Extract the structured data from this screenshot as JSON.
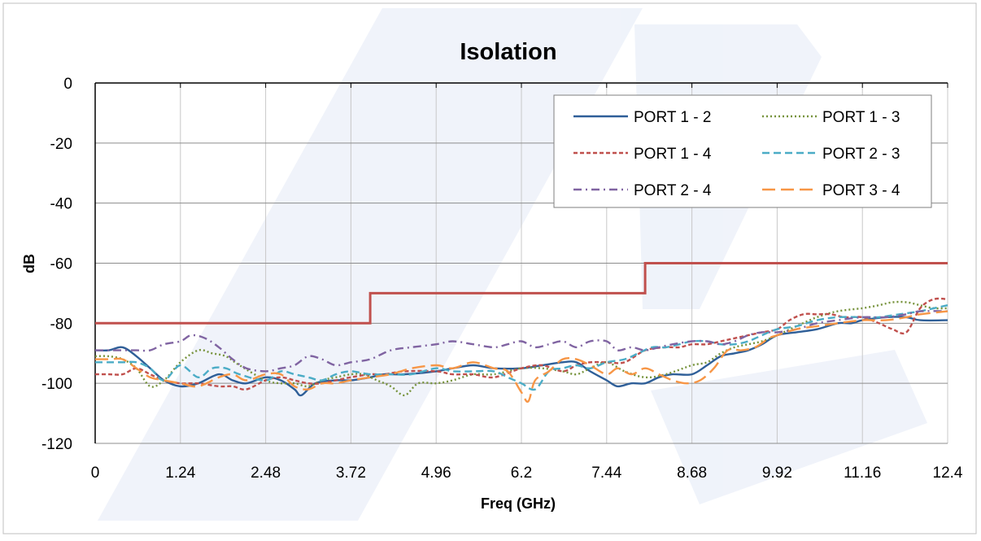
{
  "chart_data": {
    "type": "line",
    "title": "Isolation",
    "xlabel": "Freq (GHz)",
    "ylabel": "dB",
    "xlim": [
      0,
      12.4
    ],
    "ylim": [
      -120,
      0
    ],
    "xticks": [
      0,
      1.24,
      2.48,
      3.72,
      4.96,
      6.2,
      7.44,
      8.68,
      9.92,
      11.16,
      12.4
    ],
    "xtick_labels": [
      "0",
      "1.24",
      "2.48",
      "3.72",
      "4.96",
      "6.2",
      "7.44",
      "8.68",
      "9.92",
      "11.16",
      "12.4"
    ],
    "yticks": [
      0,
      -20,
      -40,
      -60,
      -80,
      -100,
      -120
    ],
    "ytick_labels": [
      "0",
      "-20",
      "-40",
      "-60",
      "-80",
      "-100",
      "-120"
    ],
    "grid": true,
    "legend_position": "top-right",
    "limit_line": {
      "color": "#c0504d",
      "x": [
        0,
        4.0,
        4.0,
        8.0,
        8.0,
        12.4
      ],
      "y": [
        -80,
        -80,
        -70,
        -70,
        -60,
        -60
      ]
    },
    "series": [
      {
        "name": "PORT 1 - 2",
        "color": "#2f5f98",
        "dash": "solid",
        "x": [
          0,
          0.2,
          0.4,
          0.6,
          0.8,
          1.0,
          1.24,
          1.5,
          1.8,
          2.0,
          2.2,
          2.48,
          2.7,
          2.9,
          3.0,
          3.2,
          3.5,
          3.72,
          4.0,
          4.2,
          4.5,
          4.96,
          5.2,
          5.5,
          5.8,
          6.2,
          6.5,
          6.8,
          7.0,
          7.2,
          7.44,
          7.6,
          7.8,
          8.0,
          8.2,
          8.4,
          8.68,
          8.9,
          9.1,
          9.3,
          9.5,
          9.7,
          9.92,
          10.2,
          10.5,
          10.8,
          11.0,
          11.16,
          11.5,
          11.8,
          12.0,
          12.4
        ],
        "y": [
          -89,
          -89,
          -88,
          -91,
          -95,
          -99,
          -101,
          -100,
          -97,
          -99,
          -100,
          -98,
          -99,
          -102,
          -104,
          -100,
          -99,
          -99,
          -98,
          -97,
          -97,
          -96,
          -95,
          -94,
          -95,
          -95,
          -94,
          -93,
          -93,
          -96,
          -99,
          -101,
          -100,
          -100,
          -98,
          -97,
          -97,
          -94,
          -91,
          -90,
          -89,
          -87,
          -84,
          -83,
          -82,
          -80,
          -80,
          -79,
          -78,
          -78,
          -79,
          -79
        ]
      },
      {
        "name": "PORT 1 - 3",
        "color": "#77933c",
        "dash": "dotted",
        "x": [
          0,
          0.2,
          0.4,
          0.6,
          0.8,
          1.0,
          1.24,
          1.5,
          1.7,
          1.9,
          2.1,
          2.48,
          2.7,
          2.9,
          3.1,
          3.3,
          3.5,
          3.72,
          3.9,
          4.1,
          4.3,
          4.5,
          4.7,
          4.96,
          5.2,
          5.5,
          5.8,
          6.2,
          6.5,
          6.8,
          7.0,
          7.2,
          7.44,
          7.7,
          8.0,
          8.3,
          8.68,
          8.9,
          9.1,
          9.3,
          9.5,
          9.7,
          9.92,
          10.2,
          10.5,
          10.8,
          11.16,
          11.4,
          11.6,
          11.8,
          12.0,
          12.2,
          12.4
        ],
        "y": [
          -91,
          -91,
          -92,
          -95,
          -101,
          -99,
          -93,
          -89,
          -90,
          -91,
          -94,
          -99,
          -100,
          -100,
          -101,
          -99,
          -98,
          -97,
          -97,
          -99,
          -101,
          -104,
          -100,
          -100,
          -99,
          -97,
          -97,
          -95,
          -95,
          -96,
          -97,
          -95,
          -93,
          -96,
          -98,
          -97,
          -94,
          -93,
          -90,
          -88,
          -87,
          -86,
          -84,
          -81,
          -78,
          -76,
          -75,
          -74,
          -73,
          -73,
          -74,
          -75,
          -75
        ]
      },
      {
        "name": "PORT 1 - 4",
        "color": "#c0504d",
        "dash": "short-dash",
        "x": [
          0,
          0.2,
          0.4,
          0.6,
          0.8,
          1.0,
          1.24,
          1.5,
          1.8,
          2.0,
          2.2,
          2.48,
          2.7,
          2.9,
          3.1,
          3.3,
          3.5,
          3.72,
          4.0,
          4.2,
          4.5,
          4.96,
          5.2,
          5.5,
          5.8,
          6.2,
          6.5,
          6.8,
          7.0,
          7.2,
          7.44,
          7.7,
          8.0,
          8.3,
          8.5,
          8.68,
          8.9,
          9.1,
          9.3,
          9.5,
          9.7,
          9.92,
          10.1,
          10.3,
          10.5,
          10.7,
          10.9,
          11.16,
          11.4,
          11.6,
          11.8,
          12.0,
          12.2,
          12.4
        ],
        "y": [
          -97,
          -97,
          -97,
          -95,
          -97,
          -99,
          -100,
          -100,
          -101,
          -101,
          -102,
          -99,
          -98,
          -99,
          -100,
          -100,
          -99,
          -98,
          -97,
          -97,
          -96,
          -96,
          -97,
          -97,
          -98,
          -95,
          -94,
          -96,
          -94,
          -93,
          -93,
          -93,
          -89,
          -88,
          -88,
          -87,
          -87,
          -86,
          -85,
          -84,
          -83,
          -82,
          -79,
          -77,
          -77,
          -77,
          -78,
          -78,
          -80,
          -82,
          -83,
          -75,
          -72,
          -72
        ]
      },
      {
        "name": "PORT 2 - 3",
        "color": "#4bacc6",
        "dash": "dash",
        "x": [
          0,
          0.2,
          0.4,
          0.6,
          0.8,
          1.0,
          1.24,
          1.5,
          1.7,
          1.9,
          2.1,
          2.48,
          2.7,
          2.9,
          3.1,
          3.3,
          3.5,
          3.72,
          4.0,
          4.3,
          4.6,
          4.96,
          5.2,
          5.5,
          5.8,
          6.0,
          6.2,
          6.4,
          6.6,
          6.8,
          7.0,
          7.2,
          7.44,
          7.7,
          7.9,
          8.1,
          8.3,
          8.5,
          8.68,
          8.9,
          9.1,
          9.3,
          9.5,
          9.7,
          9.92,
          10.2,
          10.5,
          10.8,
          11.16,
          11.4,
          11.7,
          12.0,
          12.2,
          12.4
        ],
        "y": [
          -93,
          -93,
          -93,
          -93,
          -95,
          -99,
          -94,
          -98,
          -95,
          -95,
          -97,
          -99,
          -96,
          -97,
          -98,
          -99,
          -97,
          -96,
          -97,
          -97,
          -97,
          -95,
          -96,
          -96,
          -96,
          -98,
          -100,
          -102,
          -96,
          -95,
          -94,
          -95,
          -93,
          -92,
          -90,
          -88,
          -88,
          -87,
          -86,
          -86,
          -87,
          -87,
          -86,
          -84,
          -82,
          -81,
          -79,
          -78,
          -78,
          -78,
          -77,
          -76,
          -75,
          -74
        ]
      },
      {
        "name": "PORT 2 - 4",
        "color": "#8064a2",
        "dash": "dash-dot",
        "x": [
          0,
          0.2,
          0.4,
          0.6,
          0.8,
          1.0,
          1.24,
          1.4,
          1.6,
          1.8,
          2.0,
          2.2,
          2.48,
          2.7,
          2.9,
          3.1,
          3.3,
          3.5,
          3.72,
          4.0,
          4.3,
          4.6,
          4.96,
          5.2,
          5.5,
          5.8,
          6.0,
          6.2,
          6.4,
          6.6,
          6.8,
          7.0,
          7.2,
          7.44,
          7.6,
          7.8,
          8.0,
          8.2,
          8.4,
          8.68,
          8.9,
          9.1,
          9.3,
          9.5,
          9.7,
          9.92,
          10.2,
          10.5,
          10.8,
          11.16,
          11.5,
          11.8,
          12.0,
          12.4
        ],
        "y": [
          -89,
          -89,
          -89,
          -89,
          -89,
          -87,
          -86,
          -84,
          -85,
          -88,
          -92,
          -95,
          -96,
          -95,
          -94,
          -91,
          -92,
          -94,
          -93,
          -92,
          -89,
          -88,
          -87,
          -86,
          -87,
          -88,
          -87,
          -86,
          -88,
          -87,
          -86,
          -88,
          -86,
          -86,
          -89,
          -88,
          -89,
          -88,
          -87,
          -86,
          -86,
          -87,
          -86,
          -84,
          -83,
          -83,
          -82,
          -80,
          -79,
          -78,
          -78,
          -77,
          -76,
          -76
        ]
      },
      {
        "name": "PORT 3 - 4",
        "color": "#f79646",
        "dash": "long-dash",
        "x": [
          0,
          0.2,
          0.4,
          0.6,
          0.8,
          1.0,
          1.24,
          1.5,
          1.8,
          2.0,
          2.2,
          2.48,
          2.7,
          2.9,
          3.1,
          3.3,
          3.5,
          3.72,
          4.0,
          4.3,
          4.6,
          4.96,
          5.2,
          5.5,
          5.8,
          6.0,
          6.2,
          6.3,
          6.4,
          6.6,
          6.8,
          7.0,
          7.2,
          7.44,
          7.6,
          7.8,
          8.0,
          8.2,
          8.4,
          8.6,
          8.8,
          9.0,
          9.2,
          9.4,
          9.6,
          9.8,
          9.92,
          10.2,
          10.5,
          10.8,
          11.16,
          11.5,
          11.8,
          12.0,
          12.4
        ],
        "y": [
          -92,
          -92,
          -92,
          -95,
          -98,
          -99,
          -100,
          -101,
          -98,
          -97,
          -99,
          -97,
          -97,
          -101,
          -102,
          -100,
          -100,
          -99,
          -98,
          -97,
          -95,
          -94,
          -95,
          -93,
          -95,
          -96,
          -103,
          -106,
          -99,
          -96,
          -92,
          -92,
          -94,
          -97,
          -95,
          -97,
          -95,
          -97,
          -99,
          -100,
          -99,
          -95,
          -89,
          -89,
          -88,
          -85,
          -84,
          -82,
          -81,
          -80,
          -79,
          -79,
          -78,
          -77,
          -76
        ]
      }
    ]
  }
}
